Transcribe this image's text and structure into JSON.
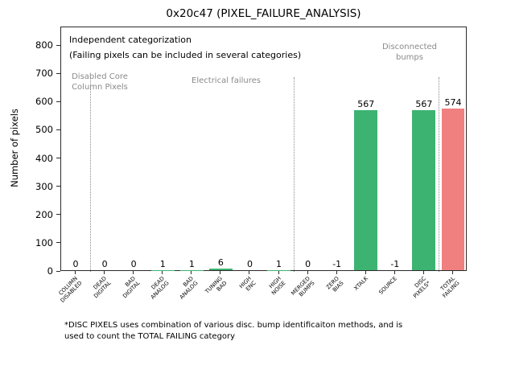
{
  "title": "0x20c47 (PIXEL_FAILURE_ANALYSIS)",
  "ylabel": "Number of pixels",
  "footnote": "*DISC PIXELS uses combination of various disc. bump identificaiton methods, and is\nused to count the TOTAL FAILING category",
  "annotations": {
    "independent": "Independent categorization",
    "included": "(Failing pixels can be included in several categories)",
    "group_disabled": "Disabled Core\nColumn Pixels",
    "group_electrical": "Electrical failures",
    "group_disconnected": "Disconnected\nbumps"
  },
  "chart_data": {
    "type": "bar",
    "title": "0x20c47 (PIXEL_FAILURE_ANALYSIS)",
    "ylabel": "Number of pixels",
    "categories": [
      [
        "COLUMN",
        "DISABLED"
      ],
      [
        "DEAD",
        "DIGITAL"
      ],
      [
        "BAD",
        "DIGITAL"
      ],
      [
        "DEAD",
        "ANALOG"
      ],
      [
        "BAD",
        "ANALOG"
      ],
      [
        "TUNING",
        "BAD"
      ],
      [
        "HIGH",
        "ENC"
      ],
      [
        "HIGH",
        "NOISE"
      ],
      [
        "MERGED",
        "BUMPS"
      ],
      [
        "ZERO",
        "BIAS"
      ],
      [
        "XTALK"
      ],
      [
        "SOURCE"
      ],
      [
        "DISC",
        "PIXELS*"
      ],
      [
        "TOTAL",
        "FAILING"
      ]
    ],
    "values": [
      0,
      0,
      0,
      1,
      1,
      6,
      0,
      1,
      0,
      -1,
      567,
      -1,
      567,
      574
    ],
    "bar_colors": [
      "#3cb371",
      "#3cb371",
      "#3cb371",
      "#3cb371",
      "#3cb371",
      "#3cb371",
      "#3cb371",
      "#3cb371",
      "#3cb371",
      "#3cb371",
      "#3cb371",
      "#3cb371",
      "#3cb371",
      "#f08080"
    ],
    "groups": [
      {
        "label": "Disabled Core Column Pixels",
        "category_indices": [
          0
        ]
      },
      {
        "label": "Electrical failures",
        "category_indices": [
          1,
          2,
          3,
          4,
          5,
          6,
          7
        ]
      },
      {
        "label": "Disconnected bumps",
        "category_indices": [
          8,
          9,
          10,
          11,
          12
        ]
      },
      {
        "label": "Total",
        "category_indices": [
          13
        ]
      }
    ],
    "separators_after_indices": [
      0,
      7,
      12
    ],
    "separator_top_value": 690,
    "ylim": [
      0,
      866
    ],
    "yticks": [
      0,
      100,
      200,
      300,
      400,
      500,
      600,
      700,
      800
    ],
    "grid": false,
    "legend": "none",
    "colors": {
      "bar_green": "#3cb371",
      "bar_red": "#f08080",
      "annotation_gray": "#8a8a8a"
    }
  }
}
